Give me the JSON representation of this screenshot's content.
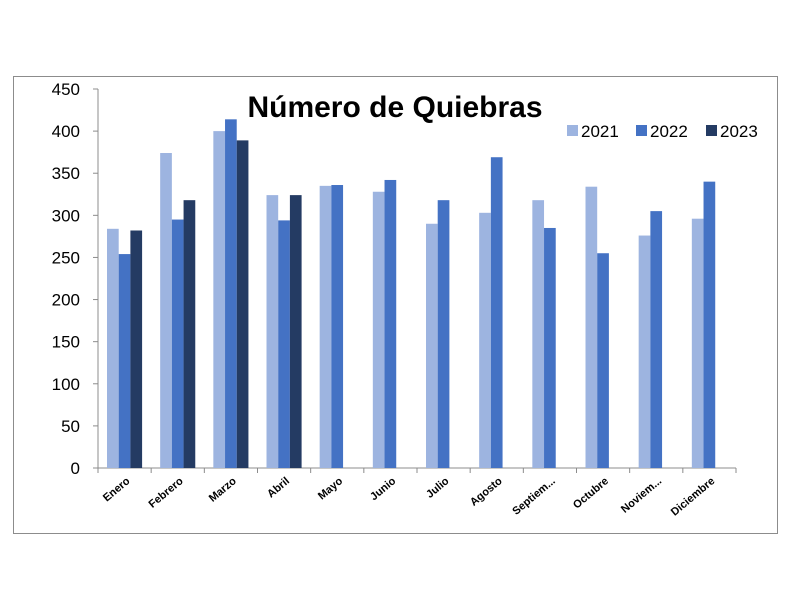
{
  "chart_data": {
    "type": "bar",
    "title": "Número de Quiebras",
    "xlabel": "",
    "ylabel": "",
    "ylim": [
      0,
      450
    ],
    "yticks": [
      0,
      50,
      100,
      150,
      200,
      250,
      300,
      350,
      400,
      450
    ],
    "grid": false,
    "legend_position": "top-right",
    "categories": [
      "Enero",
      "Febrero",
      "Marzo",
      "Abril",
      "Mayo",
      "Junio",
      "Julio",
      "Agosto",
      "Septiem...",
      "Octubre",
      "Noviem...",
      "Diciembre"
    ],
    "series": [
      {
        "name": "2021",
        "color": "#9db4e0",
        "values": [
          284,
          374,
          400,
          324,
          335,
          328,
          290,
          303,
          318,
          334,
          276,
          296
        ]
      },
      {
        "name": "2022",
        "color": "#4472c4",
        "values": [
          254,
          295,
          414,
          294,
          336,
          342,
          318,
          369,
          285,
          255,
          305,
          340
        ]
      },
      {
        "name": "2023",
        "color": "#243b63",
        "values": [
          282,
          318,
          389,
          324,
          null,
          null,
          null,
          null,
          null,
          null,
          null,
          null
        ]
      }
    ]
  }
}
